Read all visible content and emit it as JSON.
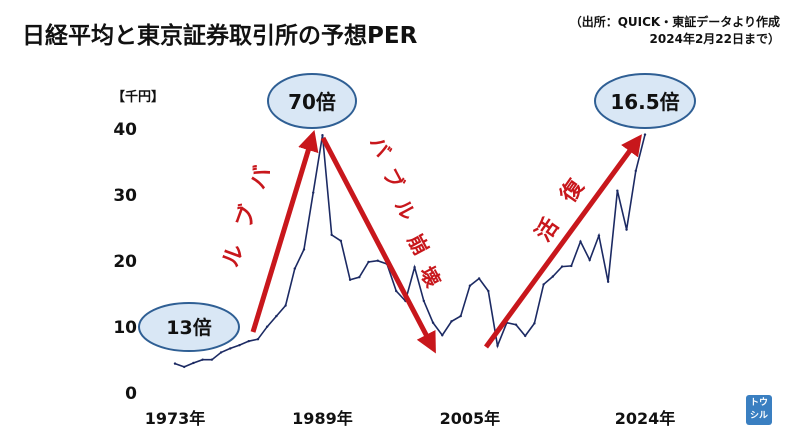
{
  "title": "日経平均と東京証券取引所の予想PER",
  "source_line1": "（出所：QUICK・東証データより作成",
  "source_line2": "2024年2月22日まで）",
  "unit_label": "【千円】",
  "logo_text": "トウシル",
  "colors": {
    "line": "#1c2a63",
    "arrow": "#c8171c",
    "bubble_fill": "#d9e7f5",
    "bubble_stroke": "#2f5f94",
    "text": "#111111"
  },
  "annotations": {
    "per_1973": "13倍",
    "per_1989": "70倍",
    "per_2024": "16.5倍",
    "bubble": "バブル",
    "bubble_collapse": "バブル崩壊",
    "revival": "復活"
  },
  "chart_data": {
    "type": "line",
    "title": "日経平均と東京証券取引所の予想PER",
    "ylabel": "【千円】",
    "xlabel": "",
    "ylim": [
      0,
      40
    ],
    "yticks": [
      0,
      10,
      20,
      30,
      40
    ],
    "xticks": [
      "1973年",
      "1989年",
      "2005年",
      "2024年"
    ],
    "grid": false,
    "series": [
      {
        "x": [
          1973,
          1974,
          1975,
          1976,
          1977,
          1978,
          1979,
          1980,
          1981,
          1982,
          1983,
          1984,
          1985,
          1986,
          1987,
          1988,
          1989,
          1990,
          1991,
          1992,
          1993,
          1994,
          1995,
          1996,
          1997,
          1998,
          1999,
          2000,
          2001,
          2002,
          2003,
          2004,
          2005,
          2006,
          2007,
          2008,
          2009,
          2010,
          2011,
          2012,
          2013,
          2014,
          2015,
          2016,
          2017,
          2018,
          2019,
          2020,
          2021,
          2022,
          2023,
          2024
        ],
        "values": [
          4.3,
          3.8,
          4.4,
          4.9,
          4.9,
          6.0,
          6.6,
          7.1,
          7.7,
          8.0,
          9.9,
          11.5,
          13.1,
          18.7,
          21.6,
          30.2,
          38.9,
          23.8,
          22.9,
          17.0,
          17.4,
          19.7,
          19.9,
          19.4,
          15.3,
          13.8,
          18.9,
          13.8,
          10.5,
          8.6,
          10.7,
          11.5,
          16.1,
          17.2,
          15.3,
          7.0,
          10.5,
          10.2,
          8.5,
          10.4,
          16.3,
          17.5,
          19.0,
          19.1,
          22.8,
          20.0,
          23.7,
          16.7,
          30.5,
          24.6,
          33.5,
          39.0
        ]
      }
    ]
  }
}
